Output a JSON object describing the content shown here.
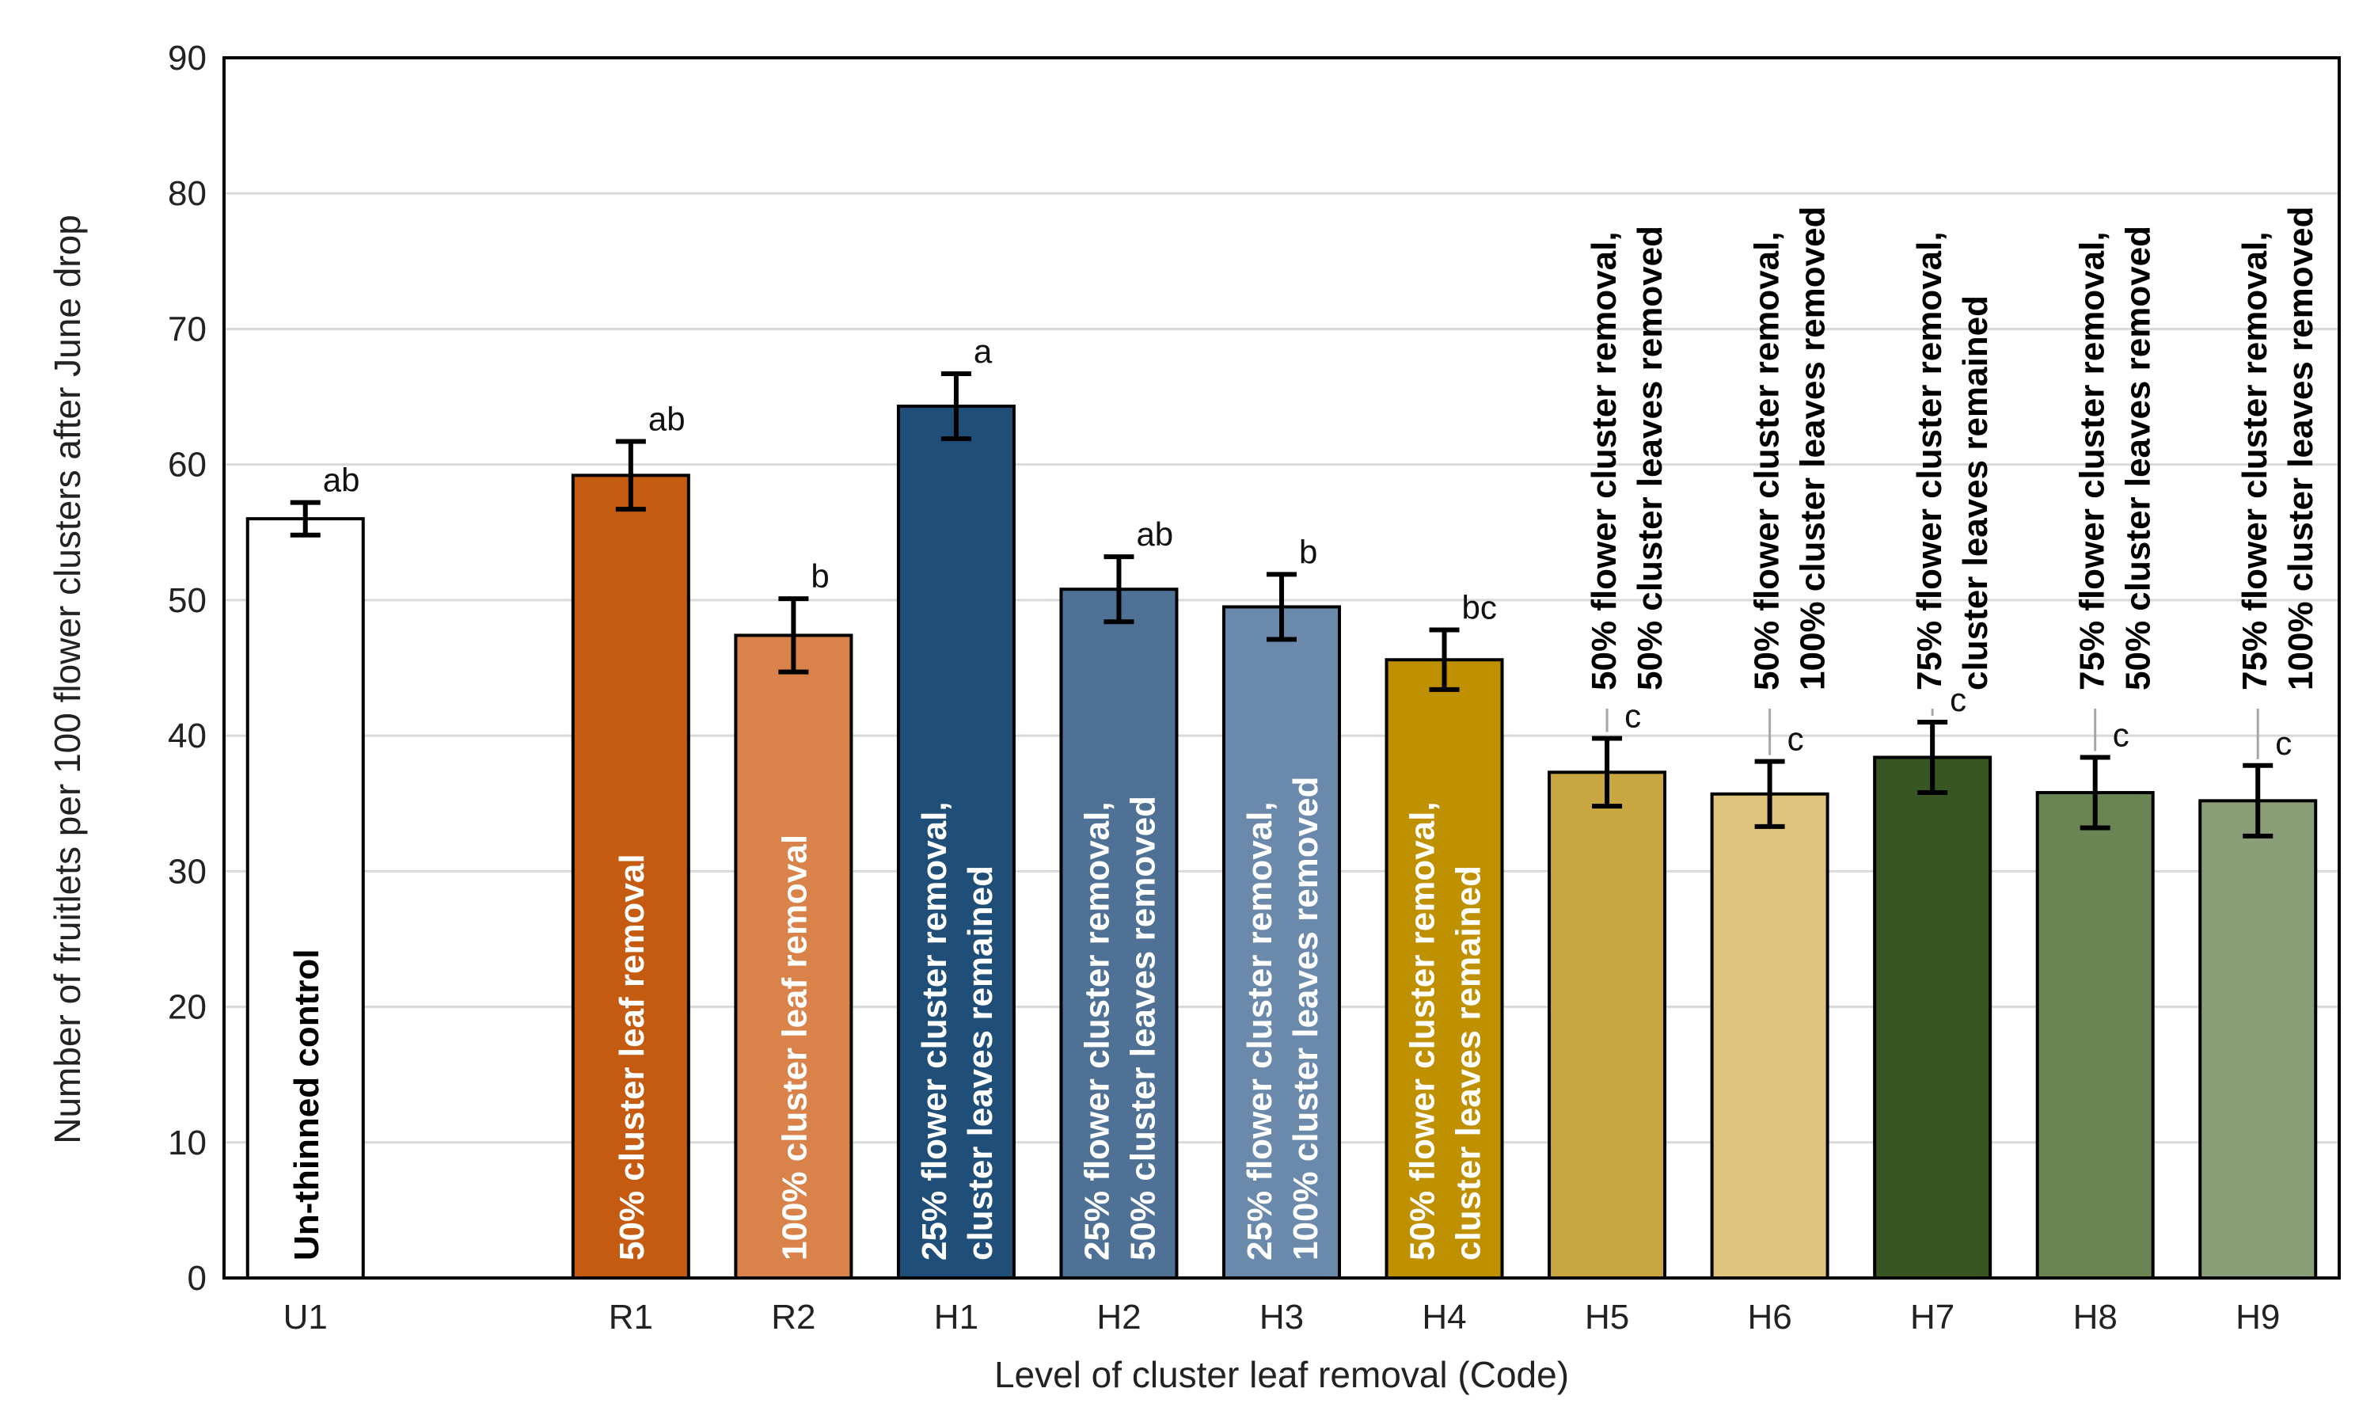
{
  "chart_data": {
    "type": "bar",
    "xlabel": "Level of cluster leaf removal  (Code)",
    "ylabel": "Number  of fruitlets per 100 flower clusters after June drop",
    "ylim": [
      0,
      90
    ],
    "yticks": [
      0,
      10,
      20,
      30,
      40,
      50,
      60,
      70,
      80,
      90
    ],
    "grid": true,
    "categories": [
      "U1",
      "",
      "R1",
      "R2",
      "H1",
      "H2",
      "H3",
      "H4",
      "H5",
      "H6",
      "H7",
      "H8",
      "H9"
    ],
    "bars": [
      {
        "code": "U1",
        "slot": 0,
        "value": 56.0,
        "error": 1.2,
        "sig": "ab",
        "color": "#ffffff",
        "text_color": "#000000",
        "label_lines": [
          "Un-thinned control"
        ],
        "label_inside": true
      },
      {
        "code": "R1",
        "slot": 2,
        "value": 59.2,
        "error": 2.5,
        "sig": "ab",
        "color": "#c55a11",
        "text_color": "#ffffff",
        "label_lines": [
          "50% cluster leaf removal"
        ],
        "label_inside": true
      },
      {
        "code": "R2",
        "slot": 3,
        "value": 47.4,
        "error": 2.7,
        "sig": "b",
        "color": "#d9834a",
        "text_color": "#ffffff",
        "label_lines": [
          "100% cluster leaf removal"
        ],
        "label_inside": true
      },
      {
        "code": "H1",
        "slot": 4,
        "value": 64.3,
        "error": 2.4,
        "sig": "a",
        "color": "#1f4e79",
        "text_color": "#ffffff",
        "label_lines": [
          "25% flower cluster removal,",
          "cluster leaves  remained"
        ],
        "label_inside": true
      },
      {
        "code": "H2",
        "slot": 5,
        "value": 50.8,
        "error": 2.4,
        "sig": "ab",
        "color": "#4f7196",
        "text_color": "#ffffff",
        "label_lines": [
          "25% flower cluster removal,",
          "50% cluster leaves  removed"
        ],
        "label_inside": true
      },
      {
        "code": "H3",
        "slot": 6,
        "value": 49.5,
        "error": 2.4,
        "sig": "b",
        "color": "#6b8aab",
        "text_color": "#ffffff",
        "label_lines": [
          "25% flower cluster removal,",
          "100% cluster leaves removed"
        ],
        "label_inside": true
      },
      {
        "code": "H4",
        "slot": 7,
        "value": 45.6,
        "error": 2.2,
        "sig": "bc",
        "color": "#bf9000",
        "text_color": "#ffffff",
        "label_lines": [
          "50% flower cluster removal,",
          "cluster leaves  remained"
        ],
        "label_inside": true
      },
      {
        "code": "H5",
        "slot": 8,
        "value": 37.3,
        "error": 2.5,
        "sig": "c",
        "color": "#c9a740",
        "text_color": "#000000",
        "label_lines": [
          "50% flower  cluster  removal,",
          "50% cluster leaves  removed"
        ],
        "label_inside": false
      },
      {
        "code": "H6",
        "slot": 9,
        "value": 35.7,
        "error": 2.4,
        "sig": "c",
        "color": "#dec47c",
        "text_color": "#000000",
        "label_lines": [
          "50% flower cluster removal,",
          "100% cluster leaves removed"
        ],
        "label_inside": false
      },
      {
        "code": "H7",
        "slot": 10,
        "value": 38.4,
        "error": 2.6,
        "sig": "c",
        "color": "#375623",
        "text_color": "#000000",
        "label_lines": [
          "75% flower cluster removal,",
          "cluster leaves remained"
        ],
        "label_inside": false
      },
      {
        "code": "H8",
        "slot": 11,
        "value": 35.8,
        "error": 2.6,
        "sig": "c",
        "color": "#6a8454",
        "text_color": "#000000",
        "label_lines": [
          "75%  flower  cluster  removal,",
          "50% cluster leaves removed"
        ],
        "label_inside": false
      },
      {
        "code": "H9",
        "slot": 12,
        "value": 35.2,
        "error": 2.6,
        "sig": "c",
        "color": "#8a9e78",
        "text_color": "#000000",
        "label_lines": [
          "75% flower cluster removal,",
          "100% cluster leaves removed"
        ],
        "label_inside": false
      }
    ]
  }
}
